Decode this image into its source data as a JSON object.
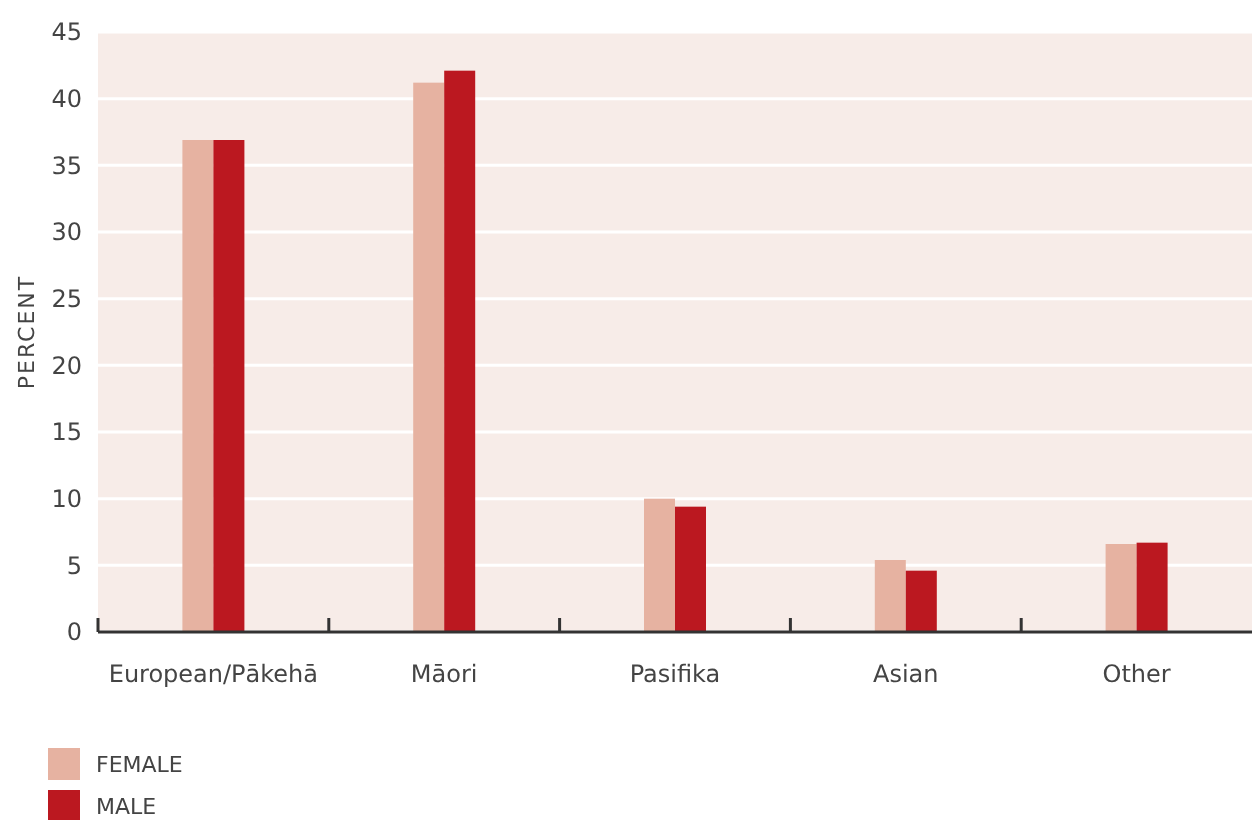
{
  "chart_data": {
    "type": "bar",
    "ylabel": "PERCENT",
    "categories": [
      "European/Pākehā",
      "Māori",
      "Pasifika",
      "Asian",
      "Other"
    ],
    "series": [
      {
        "name": "FEMALE",
        "color": "#e6b2a1",
        "values": [
          36.9,
          41.2,
          10.0,
          5.4,
          6.6
        ]
      },
      {
        "name": "MALE",
        "color": "#bb1820",
        "values": [
          36.9,
          42.1,
          9.4,
          4.6,
          6.7
        ]
      }
    ],
    "ylim": [
      0,
      45
    ],
    "yticks": [
      0,
      5,
      10,
      15,
      20,
      25,
      30,
      35,
      40,
      45
    ],
    "grid": "y",
    "legend": "bottom left"
  }
}
